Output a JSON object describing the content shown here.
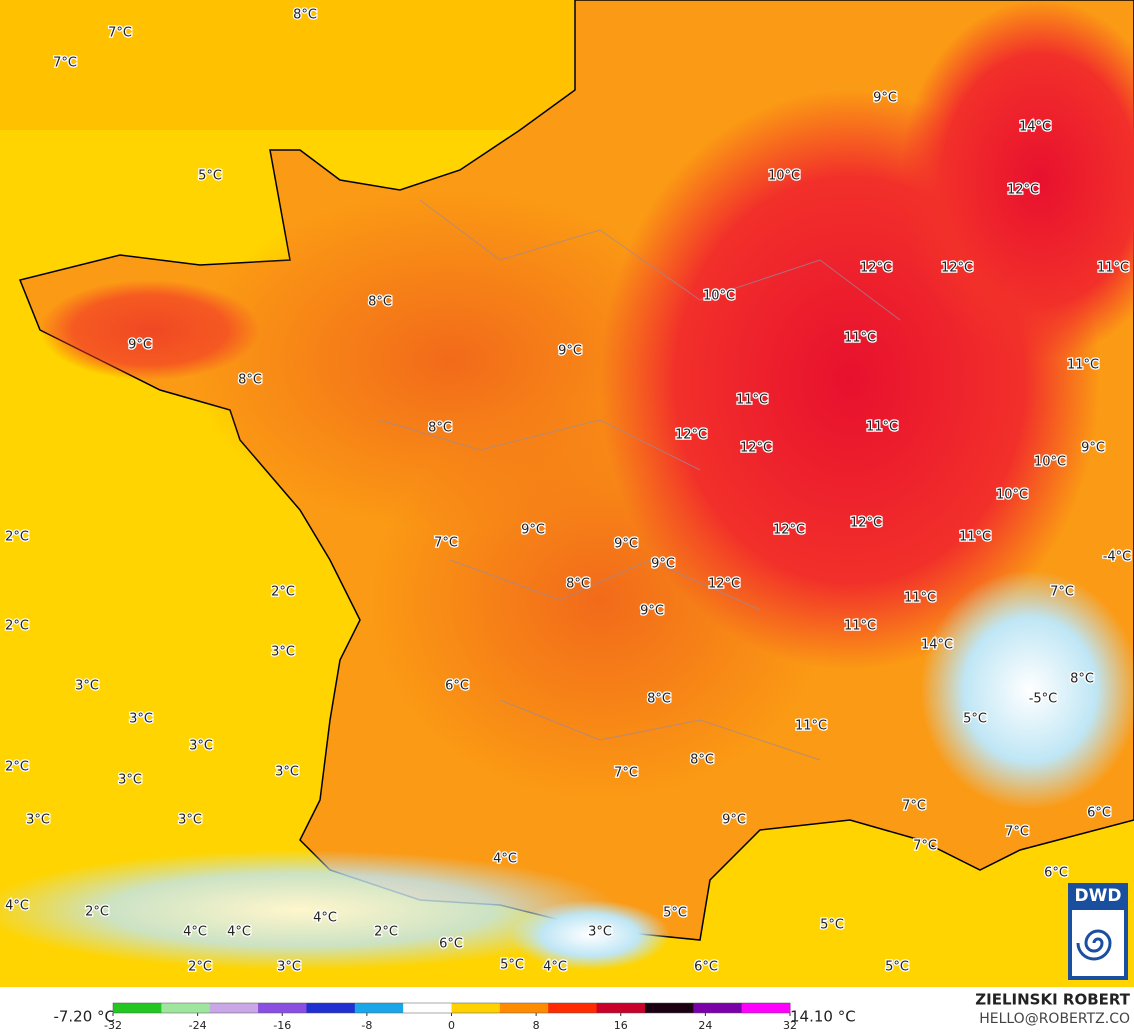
{
  "temperature_labels": [
    "8°C",
    "7°C",
    "7°C",
    "9°C",
    "14°C",
    "5°C",
    "10°C",
    "12°C",
    "12°C",
    "12°C",
    "11°C",
    "10°C",
    "8°C",
    "11°C",
    "9°C",
    "9°C",
    "11°C",
    "8°C",
    "11°C",
    "8°C",
    "11°C",
    "12°C",
    "12°C",
    "9°C",
    "10°C",
    "10°C",
    "12°C",
    "9°C",
    "12°C",
    "11°C",
    "2°C",
    "7°C",
    "9°C",
    "-4°C",
    "9°C",
    "12°C",
    "8°C",
    "2°C",
    "7°C",
    "11°C",
    "9°C",
    "2°C",
    "11°C",
    "14°C",
    "3°C",
    "6°C",
    "3°C",
    "8°C",
    "8°C",
    "-5°C",
    "3°C",
    "5°C",
    "11°C",
    "3°C",
    "2°C",
    "3°C",
    "7°C",
    "8°C",
    "3°C",
    "7°C",
    "6°C",
    "3°C",
    "3°C",
    "9°C",
    "7°C",
    "7°C",
    "4°C",
    "6°C",
    "4°C",
    "2°C",
    "5°C",
    "4°C",
    "5°C",
    "4°C",
    "4°C",
    "2°C",
    "3°C",
    "6°C",
    "5°C",
    "4°C",
    "2°C",
    "3°C",
    "6°C",
    "5°C"
  ],
  "colorbar": {
    "min_label": "-7.20 °C",
    "max_label": "14.10 °C",
    "range": [
      -32,
      32
    ],
    "ticks": [
      -32,
      -24,
      -16,
      -8,
      0,
      8,
      16,
      24,
      32
    ],
    "colors": [
      "#22c722",
      "#9ee59e",
      "#c9a6e6",
      "#8a4fe0",
      "#1f2fd1",
      "#1aa6e8",
      "#ffffff",
      "#ffd200",
      "#ff8c00",
      "#ff2a00",
      "#c8002a",
      "#1a0010",
      "#7a00a8",
      "#ff00ff"
    ]
  },
  "credit": {
    "name": "ZIELINSKI ROBERT",
    "contact": "HELLO@ROBERTZ.CO"
  },
  "logo": "DWD"
}
